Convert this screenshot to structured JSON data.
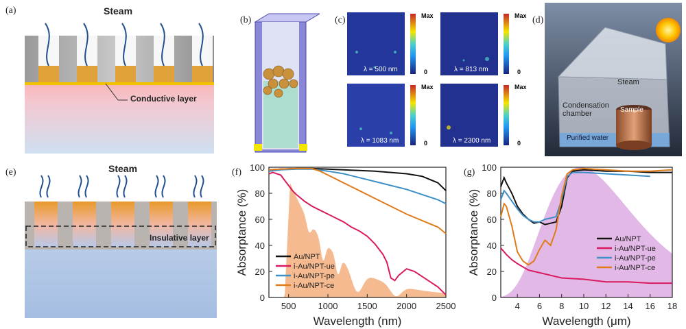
{
  "panels": {
    "a": {
      "label": "(a)",
      "title": "Steam",
      "annotation": "Conductive layer"
    },
    "b": {
      "label": "(b)"
    },
    "c": {
      "label": "(c)",
      "maps": [
        {
          "lambda": "λ = 500 nm",
          "max": "Max",
          "min": "0"
        },
        {
          "lambda": "λ = 813 nm",
          "max": "Max",
          "min": "0"
        },
        {
          "lambda": "λ = 1083 nm",
          "max": "Max",
          "min": "0"
        },
        {
          "lambda": "λ = 2300 nm",
          "max": "Max",
          "min": "0"
        }
      ]
    },
    "d": {
      "label": "(d)",
      "labels": {
        "steam": "Steam",
        "chamber": "Condensation\nchamber",
        "sample": "Sample",
        "water": "Purified water"
      }
    },
    "e": {
      "label": "(e)",
      "title": "Steam",
      "annotation": "Insulative layer"
    },
    "f": {
      "label": "(f)"
    },
    "g": {
      "label": "(g)"
    }
  },
  "chart_data": [
    {
      "panel": "f",
      "type": "line",
      "xlabel": "Wavelength (nm)",
      "ylabel": "Absorptance (%)",
      "xlim": [
        250,
        2500
      ],
      "ylim": [
        0,
        100
      ],
      "xticks": [
        500,
        1000,
        1500,
        2000,
        2500
      ],
      "yticks": [
        0,
        20,
        40,
        60,
        80,
        100
      ],
      "legend_position": "bottom-left",
      "background_fill": "solar spectrum (orange)",
      "series": [
        {
          "name": "Au/NPT",
          "color": "#111111",
          "x": [
            250,
            400,
            600,
            800,
            1000,
            1200,
            1400,
            1600,
            1800,
            2000,
            2200,
            2400,
            2500
          ],
          "y": [
            98,
            98.5,
            99,
            99,
            98.5,
            98,
            97.5,
            97,
            96,
            95,
            93,
            88,
            82
          ]
        },
        {
          "name": "i-Au/NPT-ue",
          "color": "#d81b60",
          "x": [
            250,
            300,
            400,
            450,
            500,
            550,
            600,
            700,
            800,
            900,
            1000,
            1100,
            1200,
            1300,
            1400,
            1500,
            1600,
            1700,
            1750,
            1800,
            1850,
            1900,
            2000,
            2100,
            2200,
            2300,
            2400,
            2500
          ],
          "y": [
            95,
            96,
            94,
            90,
            86,
            82,
            79,
            74,
            70,
            67,
            64,
            61,
            58,
            54,
            51,
            47,
            41,
            33,
            27,
            15,
            13,
            17,
            22,
            20,
            16,
            12,
            8,
            2
          ]
        },
        {
          "name": "i-Au/NPT-pe",
          "color": "#3d8fc6",
          "x": [
            250,
            400,
            600,
            800,
            1000,
            1200,
            1400,
            1600,
            1800,
            2000,
            2200,
            2400,
            2500
          ],
          "y": [
            97,
            98,
            98.5,
            98.5,
            97,
            95,
            92,
            89,
            86,
            83,
            79,
            75,
            72
          ]
        },
        {
          "name": "i-Au/NPT-ce",
          "color": "#e07b1a",
          "x": [
            250,
            400,
            600,
            800,
            900,
            1000,
            1200,
            1400,
            1600,
            1800,
            2000,
            2200,
            2400,
            2500
          ],
          "y": [
            98,
            98.5,
            99,
            99,
            97,
            94,
            88,
            82,
            76,
            70,
            64,
            59,
            54,
            49
          ]
        }
      ]
    },
    {
      "panel": "g",
      "type": "line",
      "xlabel": "Wavelength (μm)",
      "ylabel": "Absorptance (%)",
      "xlim": [
        2.5,
        18
      ],
      "ylim": [
        0,
        100
      ],
      "xticks": [
        4,
        6,
        8,
        10,
        12,
        14,
        16,
        18
      ],
      "yticks": [
        0,
        20,
        40,
        60,
        80,
        100
      ],
      "legend_position": "center-right",
      "background_fill": "blackbody spectrum (purple)",
      "series": [
        {
          "name": "Au/NPT",
          "color": "#111111",
          "x": [
            2.5,
            2.8,
            3,
            3.5,
            4,
            4.5,
            5,
            5.5,
            6,
            6.5,
            7,
            7.5,
            8,
            8.5,
            9,
            10,
            12,
            14,
            16,
            18
          ],
          "y": [
            85,
            92,
            88,
            80,
            70,
            64,
            60,
            57,
            58,
            56,
            57,
            58,
            70,
            92,
            97,
            98,
            97,
            97,
            96,
            96
          ]
        },
        {
          "name": "i-Au/NPT-ue",
          "color": "#d81b60",
          "x": [
            2.5,
            3,
            3.5,
            4,
            5,
            6,
            7,
            8,
            10,
            12,
            14,
            16,
            18
          ],
          "y": [
            38,
            33,
            29,
            26,
            21,
            19,
            17,
            15,
            14,
            12,
            12,
            11,
            11
          ]
        },
        {
          "name": "i-Au/NPT-pe",
          "color": "#3d8fc6",
          "x": [
            2.5,
            2.8,
            3,
            3.5,
            4,
            4.5,
            5,
            5.5,
            6,
            6.5,
            7,
            7.5,
            8,
            8.5,
            9,
            10,
            12,
            14,
            16
          ],
          "y": [
            75,
            82,
            80,
            74,
            68,
            63,
            60,
            58,
            58,
            60,
            61,
            62,
            75,
            93,
            96,
            96,
            95,
            94,
            93
          ]
        },
        {
          "name": "i-Au/NPT-ce",
          "color": "#e07b1a",
          "x": [
            2.5,
            2.8,
            3,
            3.5,
            4,
            4.5,
            5,
            5.5,
            6,
            6.5,
            7,
            7.5,
            8,
            8.5,
            9,
            10,
            12,
            14,
            16,
            18
          ],
          "y": [
            62,
            72,
            70,
            55,
            35,
            28,
            25,
            28,
            37,
            44,
            40,
            52,
            78,
            95,
            98,
            99,
            98,
            97,
            97,
            98
          ]
        }
      ]
    }
  ]
}
